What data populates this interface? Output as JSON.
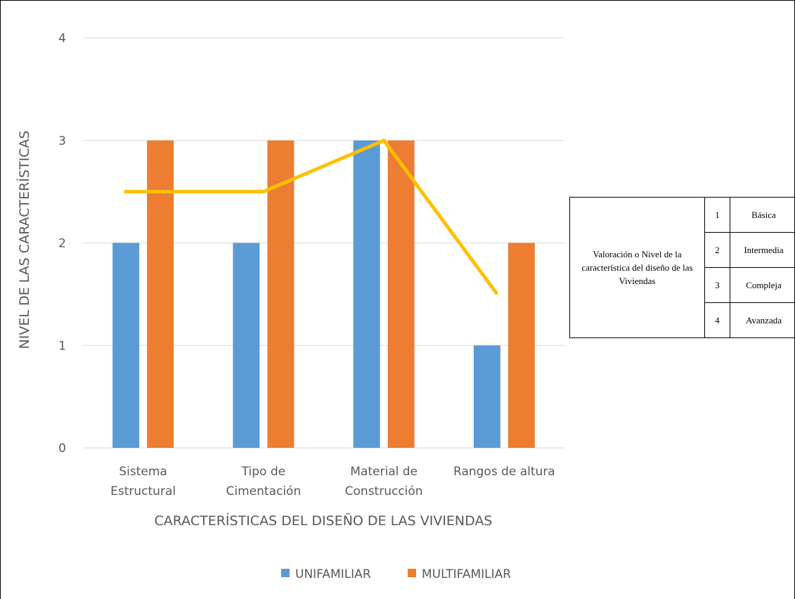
{
  "chart_data": {
    "type": "bar",
    "title": "",
    "xlabel": "CARACTERÍSTICAS DEL DISEÑO DE LAS VIVIENDAS",
    "ylabel": "NIVEL DE LAS CARACTERÍSTICAS",
    "ylim": [
      0,
      4
    ],
    "yticks": [
      "0",
      "1",
      "2",
      "3",
      "4"
    ],
    "grid": true,
    "legend_position": "bottom",
    "categories": [
      [
        "Sistema",
        "Estructural"
      ],
      [
        "Tipo de",
        "Cimentación"
      ],
      [
        "Material de",
        "Construcción"
      ],
      [
        "Rangos de altura"
      ]
    ],
    "series": [
      {
        "name": "UNIFAMILIAR",
        "type": "bar",
        "color": "#5b9bd5",
        "values": [
          2,
          2,
          3,
          1
        ]
      },
      {
        "name": "MULTIFAMILIAR",
        "type": "bar",
        "color": "#ed7d31",
        "values": [
          3,
          3,
          3,
          2
        ]
      },
      {
        "type": "line",
        "color": "#ffc000",
        "values": [
          2.5,
          2.5,
          3,
          1.5
        ]
      }
    ]
  },
  "scale_table": {
    "description": "Valoración o Nivel de la característica del diseño de las Viviendas",
    "rows": [
      {
        "num": "1",
        "label": "Básica"
      },
      {
        "num": "2",
        "label": "Intermedia"
      },
      {
        "num": "3",
        "label": "Compleja"
      },
      {
        "num": "4",
        "label": "Avanzada"
      }
    ]
  }
}
